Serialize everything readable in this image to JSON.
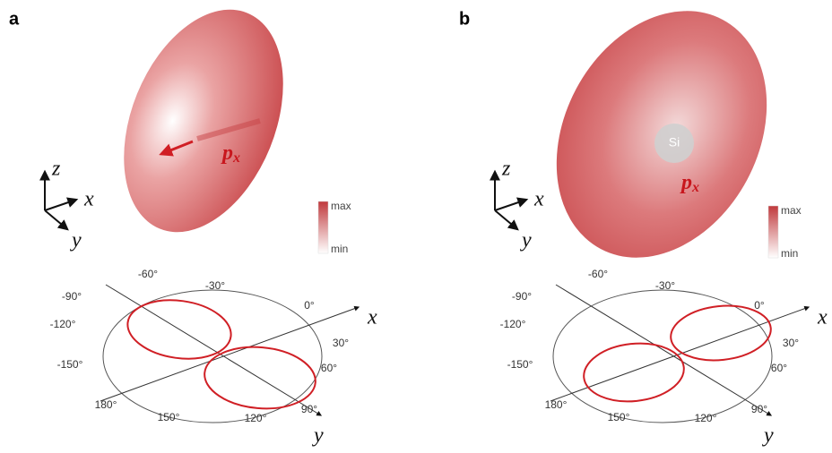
{
  "panels": [
    {
      "label": "a",
      "frame": {
        "z": "z",
        "x": "x",
        "y": "y"
      },
      "dipole": {
        "symbol": "p",
        "sub": "x"
      },
      "colorbar": {
        "max": "max",
        "min": "min"
      },
      "polar": {
        "angles": [
          "-90°",
          "-60°",
          "-30°",
          "0°",
          "30°",
          "60°",
          "90°",
          "120°",
          "150°",
          "180°",
          "-150°",
          "-120°"
        ],
        "x_axis": "x",
        "y_axis": "y"
      }
    },
    {
      "label": "b",
      "atom": "Si",
      "frame": {
        "z": "z",
        "x": "x",
        "y": "y"
      },
      "dipole": {
        "symbol": "p",
        "sub": "x"
      },
      "colorbar": {
        "max": "max",
        "min": "min"
      },
      "polar": {
        "angles": [
          "-90°",
          "-60°",
          "-30°",
          "0°",
          "30°",
          "60°",
          "90°",
          "120°",
          "150°",
          "180°",
          "-150°",
          "-120°"
        ],
        "x_axis": "x",
        "y_axis": "y"
      }
    }
  ]
}
